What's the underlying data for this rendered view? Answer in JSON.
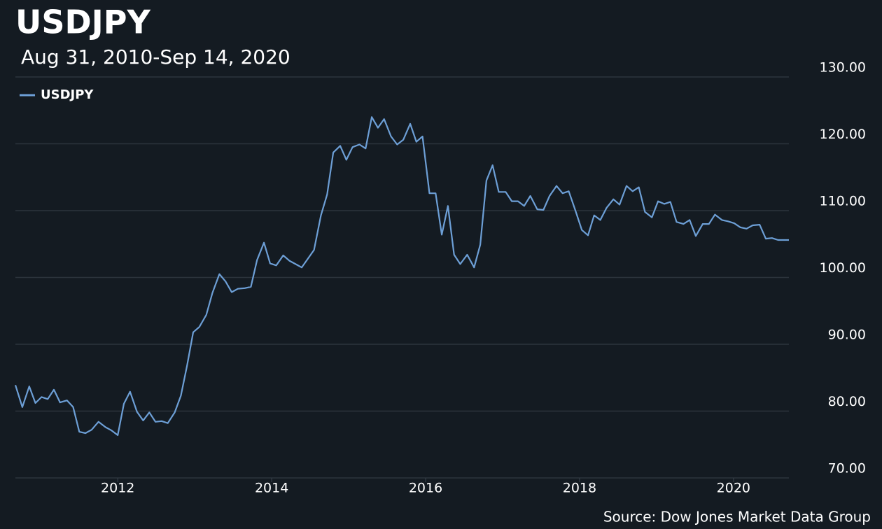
{
  "chart_data": {
    "type": "line",
    "title": "USDJPY",
    "subtitle": "Aug 31, 2010-Sep 14, 2020",
    "source": "Source: Dow Jones Market Data Group",
    "legend": "top-left",
    "grid": true,
    "xlim": [
      2010.67,
      2020.72
    ],
    "xticks": [
      2012,
      2014,
      2016,
      2018,
      2020
    ],
    "ylim": [
      70,
      130
    ],
    "yticks": [
      {
        "value": 70,
        "label": "70.00"
      },
      {
        "value": 80,
        "label": "80.00"
      },
      {
        "value": 90,
        "label": "90.00"
      },
      {
        "value": 100,
        "label": "100.00"
      },
      {
        "value": 110,
        "label": "110.00"
      },
      {
        "value": 120,
        "label": "120.00"
      },
      {
        "value": 130,
        "label": "130.00"
      }
    ],
    "x": [
      2010.67,
      2010.76,
      2010.85,
      2010.93,
      2011.01,
      2011.09,
      2011.17,
      2011.25,
      2011.34,
      2011.42,
      2011.5,
      2011.58,
      2011.66,
      2011.75,
      2011.84,
      2011.92,
      2012.0,
      2012.08,
      2012.16,
      2012.25,
      2012.33,
      2012.41,
      2012.49,
      2012.57,
      2012.65,
      2012.74,
      2012.82,
      2012.9,
      2012.98,
      2013.06,
      2013.15,
      2013.23,
      2013.32,
      2013.4,
      2013.48,
      2013.56,
      2013.65,
      2013.73,
      2013.81,
      2013.9,
      2013.98,
      2014.06,
      2014.15,
      2014.23,
      2014.31,
      2014.39,
      2014.47,
      2014.55,
      2014.64,
      2014.72,
      2014.8,
      2014.89,
      2014.97,
      2015.05,
      2015.14,
      2015.22,
      2015.3,
      2015.38,
      2015.46,
      2015.55,
      2015.63,
      2015.71,
      2015.8,
      2015.88,
      2015.96,
      2016.05,
      2016.13,
      2016.21,
      2016.29,
      2016.37,
      2016.45,
      2016.54,
      2016.63,
      2016.71,
      2016.79,
      2016.87,
      2016.95,
      2017.04,
      2017.12,
      2017.2,
      2017.28,
      2017.36,
      2017.45,
      2017.53,
      2017.61,
      2017.7,
      2017.78,
      2017.86,
      2017.95,
      2018.03,
      2018.11,
      2018.19,
      2018.27,
      2018.35,
      2018.44,
      2018.52,
      2018.61,
      2018.69,
      2018.77,
      2018.85,
      2018.94,
      2019.02,
      2019.1,
      2019.18,
      2019.26,
      2019.35,
      2019.43,
      2019.51,
      2019.6,
      2019.68,
      2019.76,
      2019.85,
      2019.93,
      2020.01,
      2020.09,
      2020.17,
      2020.25,
      2020.34,
      2020.42,
      2020.5,
      2020.58,
      2020.72
    ],
    "series": [
      {
        "name": "USDJPY",
        "color": "#6d9fd6",
        "values": [
          83.9,
          80.6,
          83.7,
          81.2,
          82.1,
          81.8,
          83.2,
          81.3,
          81.6,
          80.6,
          76.9,
          76.7,
          77.2,
          78.4,
          77.6,
          77.1,
          76.4,
          81.1,
          82.9,
          79.9,
          78.6,
          79.8,
          78.4,
          78.5,
          78.2,
          79.8,
          82.3,
          86.8,
          91.8,
          92.6,
          94.4,
          97.7,
          100.5,
          99.4,
          97.8,
          98.3,
          98.4,
          98.6,
          102.6,
          105.2,
          102.1,
          101.8,
          103.3,
          102.5,
          102.0,
          101.5,
          102.8,
          104.1,
          109.3,
          112.4,
          118.7,
          119.7,
          117.6,
          119.5,
          119.9,
          119.3,
          124.0,
          122.4,
          123.7,
          121.1,
          119.9,
          120.6,
          123.0,
          120.3,
          121.1,
          112.6,
          112.6,
          106.4,
          110.7,
          103.4,
          102.0,
          103.4,
          101.5,
          104.9,
          114.5,
          116.8,
          112.8,
          112.8,
          111.4,
          111.4,
          110.7,
          112.2,
          110.2,
          110.1,
          112.2,
          113.7,
          112.6,
          112.9,
          109.9,
          107.1,
          106.3,
          109.3,
          108.6,
          110.4,
          111.7,
          110.9,
          113.7,
          112.9,
          113.5,
          109.8,
          109.0,
          111.4,
          111.0,
          111.3,
          108.3,
          108.0,
          108.6,
          106.2,
          108.0,
          108.0,
          109.4,
          108.6,
          108.4,
          108.1,
          107.5,
          107.3,
          107.8,
          107.9,
          105.8,
          105.9,
          105.6,
          105.6
        ]
      }
    ]
  }
}
